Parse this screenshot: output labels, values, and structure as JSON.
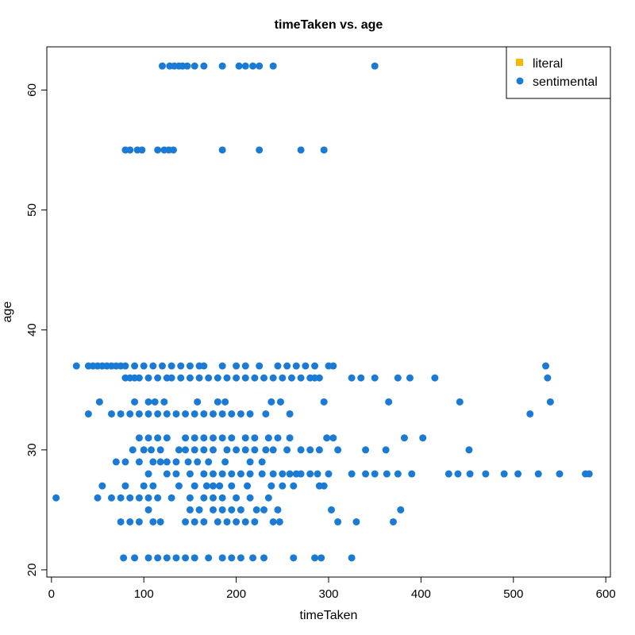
{
  "chart_data": {
    "type": "scatter",
    "title": "timeTaken vs. age",
    "xlabel": "timeTaken",
    "ylabel": "age",
    "xlim": [
      -5,
      605
    ],
    "ylim": [
      19.4,
      63.6
    ],
    "x_ticks": [
      0,
      100,
      200,
      300,
      400,
      500,
      600
    ],
    "y_ticks": [
      20,
      30,
      40,
      50,
      60
    ],
    "grid": false,
    "legend_position": "top-right",
    "series": [
      {
        "name": "literal",
        "color": "#f5b800",
        "marker": "square",
        "points": []
      },
      {
        "name": "sentimental",
        "color": "#1a7ad4",
        "marker": "circle",
        "points": [
          [
            120,
            62
          ],
          [
            128,
            62
          ],
          [
            133,
            62
          ],
          [
            138,
            62
          ],
          [
            142,
            62
          ],
          [
            147,
            62
          ],
          [
            155,
            62
          ],
          [
            165,
            62
          ],
          [
            185,
            62
          ],
          [
            203,
            62
          ],
          [
            210,
            62
          ],
          [
            218,
            62
          ],
          [
            225,
            62
          ],
          [
            240,
            62
          ],
          [
            350,
            62
          ],
          [
            80,
            55
          ],
          [
            85,
            55
          ],
          [
            93,
            55
          ],
          [
            98,
            55
          ],
          [
            115,
            55
          ],
          [
            122,
            55
          ],
          [
            127,
            55
          ],
          [
            132,
            55
          ],
          [
            185,
            55
          ],
          [
            225,
            55
          ],
          [
            270,
            55
          ],
          [
            295,
            55
          ],
          [
            27,
            37
          ],
          [
            40,
            37
          ],
          [
            45,
            37
          ],
          [
            50,
            37
          ],
          [
            55,
            37
          ],
          [
            60,
            37
          ],
          [
            65,
            37
          ],
          [
            70,
            37
          ],
          [
            75,
            37
          ],
          [
            80,
            37
          ],
          [
            90,
            37
          ],
          [
            100,
            37
          ],
          [
            110,
            37
          ],
          [
            120,
            37
          ],
          [
            130,
            37
          ],
          [
            140,
            37
          ],
          [
            150,
            37
          ],
          [
            160,
            37
          ],
          [
            165,
            37
          ],
          [
            185,
            37
          ],
          [
            200,
            37
          ],
          [
            210,
            37
          ],
          [
            225,
            37
          ],
          [
            245,
            37
          ],
          [
            255,
            37
          ],
          [
            265,
            37
          ],
          [
            275,
            37
          ],
          [
            285,
            37
          ],
          [
            300,
            37
          ],
          [
            305,
            37
          ],
          [
            535,
            37
          ],
          [
            80,
            36
          ],
          [
            85,
            36
          ],
          [
            90,
            36
          ],
          [
            95,
            36
          ],
          [
            105,
            36
          ],
          [
            115,
            36
          ],
          [
            125,
            36
          ],
          [
            130,
            36
          ],
          [
            140,
            36
          ],
          [
            150,
            36
          ],
          [
            160,
            36
          ],
          [
            170,
            36
          ],
          [
            180,
            36
          ],
          [
            190,
            36
          ],
          [
            200,
            36
          ],
          [
            210,
            36
          ],
          [
            220,
            36
          ],
          [
            230,
            36
          ],
          [
            240,
            36
          ],
          [
            250,
            36
          ],
          [
            260,
            36
          ],
          [
            270,
            36
          ],
          [
            280,
            36
          ],
          [
            285,
            36
          ],
          [
            290,
            36
          ],
          [
            325,
            36
          ],
          [
            335,
            36
          ],
          [
            350,
            36
          ],
          [
            375,
            36
          ],
          [
            388,
            36
          ],
          [
            415,
            36
          ],
          [
            537,
            36
          ],
          [
            52,
            34
          ],
          [
            90,
            34
          ],
          [
            105,
            34
          ],
          [
            112,
            34
          ],
          [
            122,
            34
          ],
          [
            158,
            34
          ],
          [
            180,
            34
          ],
          [
            188,
            34
          ],
          [
            238,
            34
          ],
          [
            248,
            34
          ],
          [
            295,
            34
          ],
          [
            365,
            34
          ],
          [
            442,
            34
          ],
          [
            540,
            34
          ],
          [
            40,
            33
          ],
          [
            65,
            33
          ],
          [
            75,
            33
          ],
          [
            85,
            33
          ],
          [
            95,
            33
          ],
          [
            105,
            33
          ],
          [
            115,
            33
          ],
          [
            125,
            33
          ],
          [
            135,
            33
          ],
          [
            145,
            33
          ],
          [
            155,
            33
          ],
          [
            165,
            33
          ],
          [
            175,
            33
          ],
          [
            185,
            33
          ],
          [
            195,
            33
          ],
          [
            205,
            33
          ],
          [
            215,
            33
          ],
          [
            232,
            33
          ],
          [
            258,
            33
          ],
          [
            518,
            33
          ],
          [
            95,
            31
          ],
          [
            105,
            31
          ],
          [
            115,
            31
          ],
          [
            125,
            31
          ],
          [
            145,
            31
          ],
          [
            155,
            31
          ],
          [
            165,
            31
          ],
          [
            175,
            31
          ],
          [
            185,
            31
          ],
          [
            195,
            31
          ],
          [
            210,
            31
          ],
          [
            220,
            31
          ],
          [
            235,
            31
          ],
          [
            245,
            31
          ],
          [
            258,
            31
          ],
          [
            298,
            31
          ],
          [
            305,
            31
          ],
          [
            382,
            31
          ],
          [
            402,
            31
          ],
          [
            88,
            30
          ],
          [
            100,
            30
          ],
          [
            108,
            30
          ],
          [
            118,
            30
          ],
          [
            138,
            30
          ],
          [
            145,
            30
          ],
          [
            155,
            30
          ],
          [
            165,
            30
          ],
          [
            175,
            30
          ],
          [
            190,
            30
          ],
          [
            200,
            30
          ],
          [
            210,
            30
          ],
          [
            220,
            30
          ],
          [
            232,
            30
          ],
          [
            240,
            30
          ],
          [
            255,
            30
          ],
          [
            270,
            30
          ],
          [
            280,
            30
          ],
          [
            290,
            30
          ],
          [
            310,
            30
          ],
          [
            340,
            30
          ],
          [
            362,
            30
          ],
          [
            452,
            30
          ],
          [
            70,
            29
          ],
          [
            80,
            29
          ],
          [
            95,
            29
          ],
          [
            110,
            29
          ],
          [
            118,
            29
          ],
          [
            125,
            29
          ],
          [
            135,
            29
          ],
          [
            148,
            29
          ],
          [
            158,
            29
          ],
          [
            170,
            29
          ],
          [
            188,
            29
          ],
          [
            215,
            29
          ],
          [
            228,
            29
          ],
          [
            105,
            28
          ],
          [
            125,
            28
          ],
          [
            135,
            28
          ],
          [
            150,
            28
          ],
          [
            165,
            28
          ],
          [
            175,
            28
          ],
          [
            185,
            28
          ],
          [
            195,
            28
          ],
          [
            205,
            28
          ],
          [
            215,
            28
          ],
          [
            228,
            28
          ],
          [
            240,
            28
          ],
          [
            250,
            28
          ],
          [
            258,
            28
          ],
          [
            265,
            28
          ],
          [
            270,
            28
          ],
          [
            280,
            28
          ],
          [
            288,
            28
          ],
          [
            300,
            28
          ],
          [
            325,
            28
          ],
          [
            340,
            28
          ],
          [
            350,
            28
          ],
          [
            363,
            28
          ],
          [
            375,
            28
          ],
          [
            390,
            28
          ],
          [
            430,
            28
          ],
          [
            440,
            28
          ],
          [
            453,
            28
          ],
          [
            470,
            28
          ],
          [
            490,
            28
          ],
          [
            505,
            28
          ],
          [
            527,
            28
          ],
          [
            550,
            28
          ],
          [
            578,
            28
          ],
          [
            582,
            28
          ],
          [
            55,
            27
          ],
          [
            80,
            27
          ],
          [
            100,
            27
          ],
          [
            110,
            27
          ],
          [
            138,
            27
          ],
          [
            155,
            27
          ],
          [
            168,
            27
          ],
          [
            175,
            27
          ],
          [
            182,
            27
          ],
          [
            195,
            27
          ],
          [
            212,
            27
          ],
          [
            238,
            27
          ],
          [
            250,
            27
          ],
          [
            262,
            27
          ],
          [
            290,
            27
          ],
          [
            295,
            27
          ],
          [
            5,
            26
          ],
          [
            50,
            26
          ],
          [
            65,
            26
          ],
          [
            75,
            26
          ],
          [
            85,
            26
          ],
          [
            95,
            26
          ],
          [
            105,
            26
          ],
          [
            115,
            26
          ],
          [
            130,
            26
          ],
          [
            150,
            26
          ],
          [
            165,
            26
          ],
          [
            175,
            26
          ],
          [
            185,
            26
          ],
          [
            200,
            26
          ],
          [
            215,
            26
          ],
          [
            235,
            26
          ],
          [
            105,
            25
          ],
          [
            150,
            25
          ],
          [
            160,
            25
          ],
          [
            175,
            25
          ],
          [
            185,
            25
          ],
          [
            195,
            25
          ],
          [
            205,
            25
          ],
          [
            222,
            25
          ],
          [
            230,
            25
          ],
          [
            245,
            25
          ],
          [
            303,
            25
          ],
          [
            378,
            25
          ],
          [
            75,
            24
          ],
          [
            85,
            24
          ],
          [
            95,
            24
          ],
          [
            110,
            24
          ],
          [
            118,
            24
          ],
          [
            145,
            24
          ],
          [
            155,
            24
          ],
          [
            165,
            24
          ],
          [
            180,
            24
          ],
          [
            190,
            24
          ],
          [
            200,
            24
          ],
          [
            210,
            24
          ],
          [
            220,
            24
          ],
          [
            240,
            24
          ],
          [
            247,
            24
          ],
          [
            310,
            24
          ],
          [
            330,
            24
          ],
          [
            370,
            24
          ],
          [
            78,
            21
          ],
          [
            90,
            21
          ],
          [
            105,
            21
          ],
          [
            115,
            21
          ],
          [
            125,
            21
          ],
          [
            135,
            21
          ],
          [
            145,
            21
          ],
          [
            155,
            21
          ],
          [
            170,
            21
          ],
          [
            185,
            21
          ],
          [
            195,
            21
          ],
          [
            205,
            21
          ],
          [
            218,
            21
          ],
          [
            230,
            21
          ],
          [
            262,
            21
          ],
          [
            285,
            21
          ],
          [
            292,
            21
          ],
          [
            325,
            21
          ]
        ]
      }
    ]
  }
}
